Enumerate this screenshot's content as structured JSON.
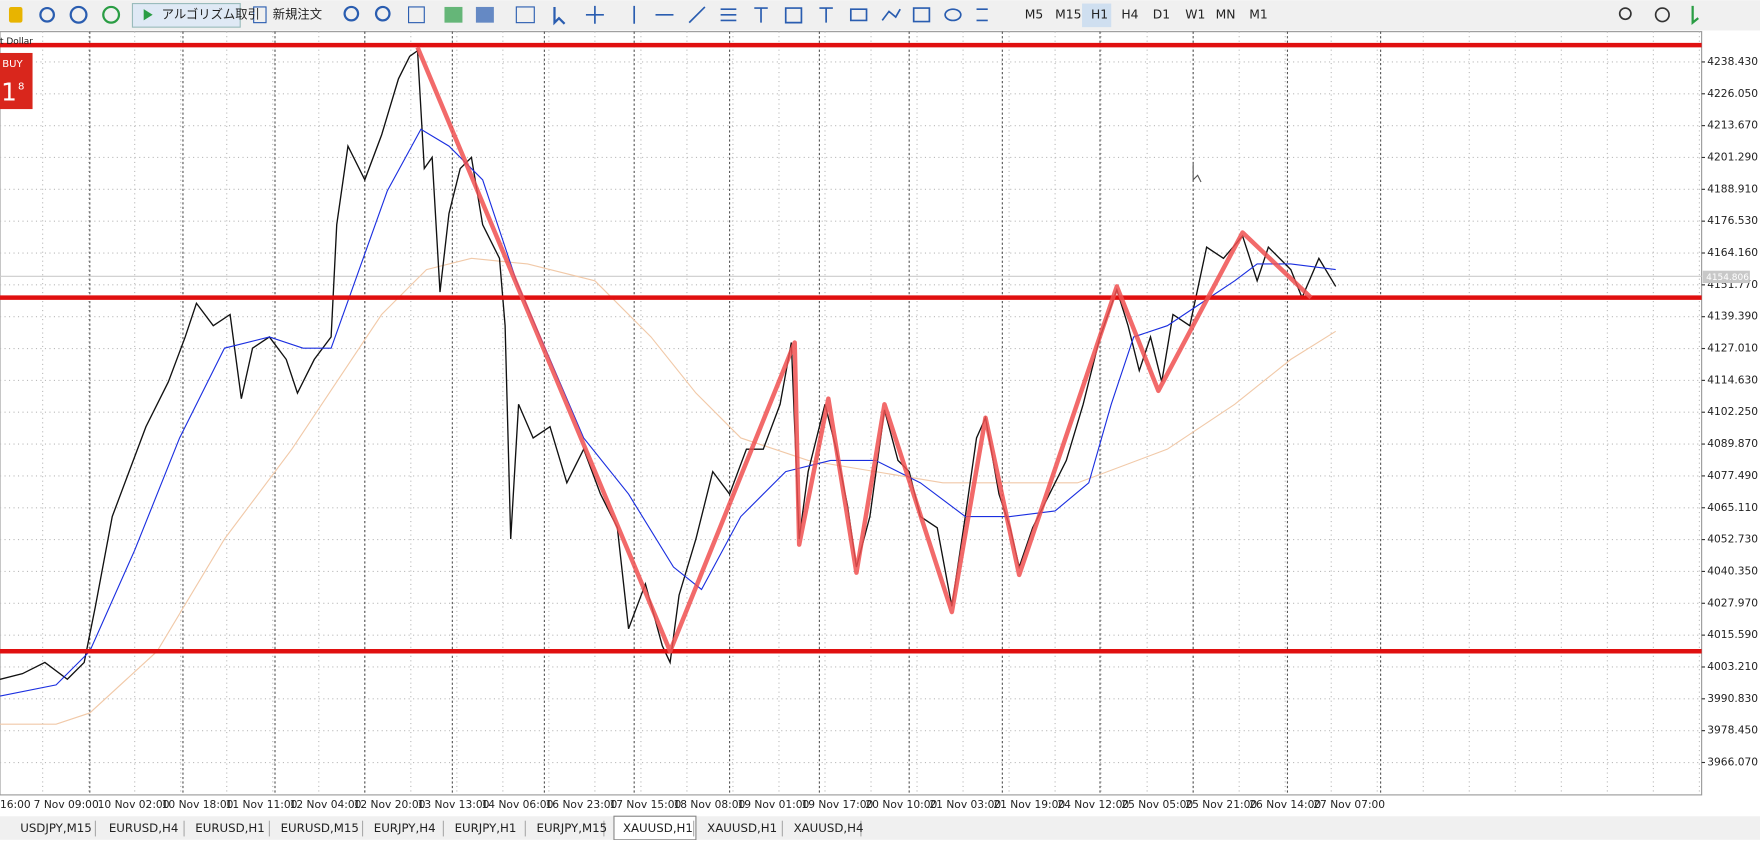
{
  "toolbar": {
    "algo_trading": "アルゴリズム取引",
    "new_order": "新規注文",
    "timeframes": [
      "M5",
      "M15",
      "H1",
      "H4",
      "D1",
      "W1",
      "MN",
      "M1"
    ],
    "active_timeframe": "H1"
  },
  "symbol_fragment": "t Dollar",
  "trade_panel": {
    "side": "BUY",
    "price_big": "1",
    "price_small": "8"
  },
  "price_axis": {
    "labels": [
      "4238.430",
      "4226.050",
      "4213.670",
      "4201.290",
      "4188.910",
      "4176.530",
      "4164.160",
      "4151.770",
      "4139.390",
      "4127.010",
      "4114.630",
      "4102.250",
      "4089.870",
      "4077.490",
      "4065.110",
      "4052.730",
      "4040.350",
      "4027.970",
      "4015.590",
      "4003.210",
      "3990.830",
      "3978.450",
      "3966.070"
    ],
    "current": "4154.806"
  },
  "time_axis": {
    "labels": [
      "16:00",
      "7 Nov 09:00",
      "10 Nov 02:00",
      "10 Nov 18:00",
      "11 Nov 11:00",
      "12 Nov 04:00",
      "12 Nov 20:00",
      "13 Nov 13:00",
      "14 Nov 06:00",
      "16 Nov 23:00",
      "17 Nov 15:00",
      "18 Nov 08:00",
      "19 Nov 01:00",
      "19 Nov 17:00",
      "20 Nov 10:00",
      "21 Nov 03:00",
      "21 Nov 19:00",
      "24 Nov 12:00",
      "25 Nov 05:00",
      "25 Nov 21:00",
      "26 Nov 14:00",
      "27 Nov 07:00"
    ]
  },
  "tabs": {
    "items": [
      "USDJPY,M15",
      "EURUSD,H4",
      "EURUSD,H1",
      "EURUSD,M15",
      "EURJPY,H4",
      "EURJPY,H1",
      "EURJPY,M15",
      "XAUUSD,H1",
      "XAUUSD,H1",
      "XAUUSD,H4"
    ],
    "active": 7
  }
}
